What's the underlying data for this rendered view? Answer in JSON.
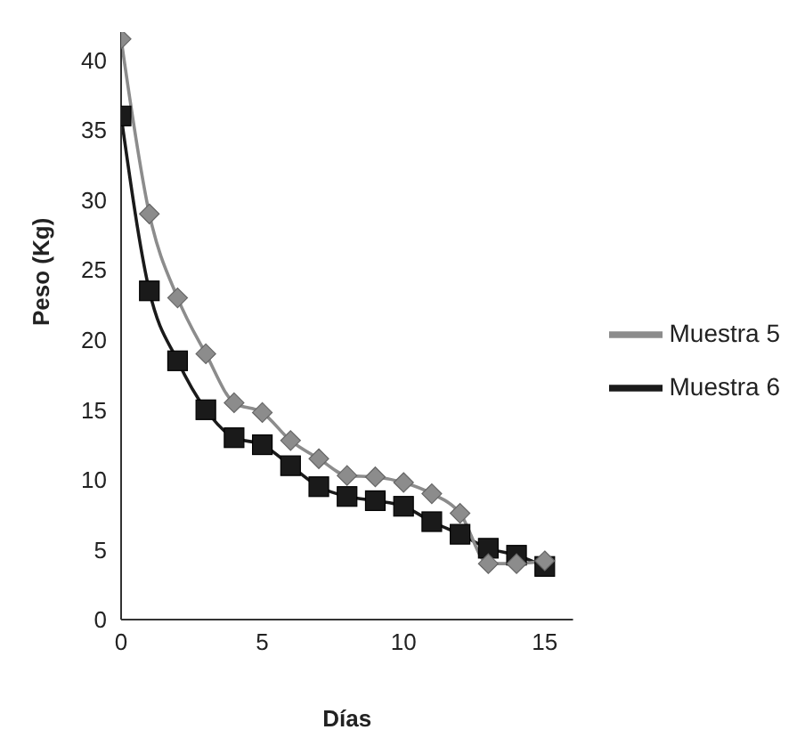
{
  "chart_data": {
    "type": "line",
    "xlabel": "Días",
    "ylabel": "Peso (Kg)",
    "x": [
      0,
      1,
      2,
      3,
      4,
      5,
      6,
      7,
      8,
      9,
      10,
      11,
      12,
      13,
      14,
      15
    ],
    "series": [
      {
        "name": "Muestra 5",
        "color": "#8c8c8c",
        "marker": "diamond",
        "values": [
          41.5,
          29,
          23,
          19,
          15.5,
          14.8,
          12.8,
          11.5,
          10.3,
          10.2,
          9.8,
          9.0,
          7.6,
          4.0,
          4.0,
          4.2
        ]
      },
      {
        "name": "Muestra 6",
        "color": "#1a1a1a",
        "marker": "square",
        "values": [
          36,
          23.5,
          18.5,
          15,
          13,
          12.5,
          11,
          9.5,
          8.8,
          8.5,
          8.1,
          7.0,
          6.1,
          5.1,
          4.6,
          3.8
        ]
      }
    ],
    "xlim": [
      0,
      16
    ],
    "xticks": [
      0,
      5,
      10,
      15
    ],
    "ylim": [
      0,
      42
    ],
    "yticks": [
      0,
      5,
      10,
      15,
      20,
      25,
      30,
      35,
      40
    ],
    "grid": false,
    "legend": "right"
  }
}
